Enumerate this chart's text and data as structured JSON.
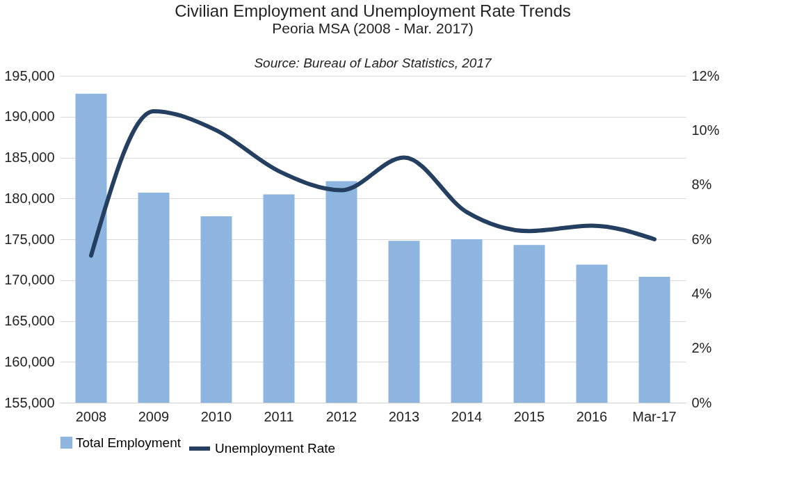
{
  "chart_data": {
    "type": "bar",
    "title": "Civilian Employment and Unemployment Rate Trends",
    "subtitle": "Peoria MSA (2008 - Mar. 2017)",
    "annotations": [
      "Source: Bureau of Labor Statistics, 2017"
    ],
    "categories": [
      "2008",
      "2009",
      "2010",
      "2011",
      "2012",
      "2013",
      "2014",
      "2015",
      "2016",
      "Mar-17"
    ],
    "series": [
      {
        "name": "Total Employment",
        "color": "#8eb4e0",
        "values": [
          192800,
          180700,
          177800,
          180500,
          182100,
          174800,
          175000,
          174300,
          171900,
          170400
        ]
      },
      {
        "name": "Unemployment Rate",
        "type": "line",
        "axis": "y2",
        "color": "#243f60",
        "values": [
          5.4,
          10.7,
          10.0,
          8.5,
          7.8,
          9.0,
          7.0,
          6.3,
          6.5,
          6.0
        ]
      }
    ],
    "ylim": [
      155000,
      195000
    ],
    "yticks": [
      {
        "value": 155000,
        "label": "155,000"
      },
      {
        "value": 160000,
        "label": "160,000"
      },
      {
        "value": 165000,
        "label": "165,000"
      },
      {
        "value": 170000,
        "label": "170,000"
      },
      {
        "value": 175000,
        "label": "175,000"
      },
      {
        "value": 180000,
        "label": "180,000"
      },
      {
        "value": 185000,
        "label": "185,000"
      },
      {
        "value": 190000,
        "label": "190,000"
      },
      {
        "value": 195000,
        "label": "195,000"
      }
    ],
    "y2lim": [
      0,
      12
    ],
    "y2ticks": [
      {
        "value": 0,
        "label": "0%"
      },
      {
        "value": 2,
        "label": "2%"
      },
      {
        "value": 4,
        "label": "4%"
      },
      {
        "value": 6,
        "label": "6%"
      },
      {
        "value": 8,
        "label": "8%"
      },
      {
        "value": 10,
        "label": "10%"
      },
      {
        "value": 12,
        "label": "12%"
      }
    ],
    "grid": "y",
    "legend": "bottom",
    "marker": "none",
    "line_style": "solid"
  }
}
